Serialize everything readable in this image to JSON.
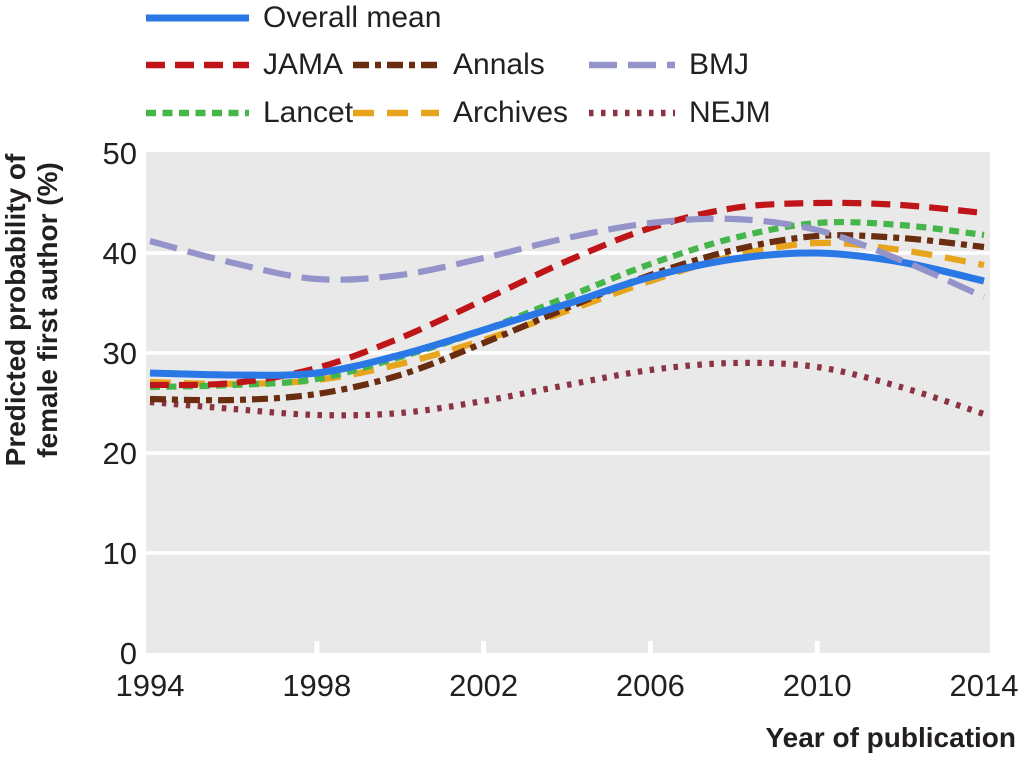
{
  "figure": {
    "plot_background": "#e9e9e9",
    "grid_color": "#ffffff",
    "text_color": "#231f20",
    "xlabel": "Year of publication",
    "ylabel_line1": "Predicted probability of",
    "ylabel_line2": "female first author (%)",
    "x_ticks": [
      "1994",
      "1998",
      "2002",
      "2006",
      "2010",
      "2014"
    ],
    "y_ticks": [
      "0",
      "10",
      "20",
      "30",
      "40",
      "50"
    ]
  },
  "legend": {
    "rows": [
      [
        "Overall mean"
      ],
      [
        "JAMA",
        "Annals",
        "BMJ"
      ],
      [
        "Lancet",
        "Archives",
        "NEJM"
      ]
    ]
  },
  "chart_data": {
    "type": "line",
    "title": "",
    "xlabel": "Year of publication",
    "ylabel": "Predicted probability of female first author (%)",
    "xlim": [
      1994,
      2014
    ],
    "ylim": [
      0,
      50
    ],
    "xticks": [
      1994,
      1998,
      2002,
      2006,
      2010,
      2014
    ],
    "yticks": [
      0,
      10,
      20,
      30,
      40,
      50
    ],
    "grid": "horizontal white lines on gray panel at y=10,20,30,40",
    "legend_position": "top-left, three rows",
    "x": [
      1994,
      1996,
      1998,
      2000,
      2002,
      2004,
      2006,
      2008,
      2010,
      2012,
      2014
    ],
    "series": [
      {
        "name": "NEJM",
        "color": "#8c3342",
        "style": "dotted",
        "values": [
          25.1,
          24.4,
          23.8,
          24.0,
          25.2,
          26.8,
          28.3,
          29.0,
          28.6,
          26.6,
          23.9
        ]
      },
      {
        "name": "Archives",
        "color": "#e7a51e",
        "style": "long-dash",
        "values": [
          27.1,
          26.9,
          27.3,
          28.9,
          31.3,
          34.2,
          37.2,
          39.7,
          41.0,
          40.3,
          38.8
        ]
      },
      {
        "name": "Lancet",
        "color": "#45b649",
        "style": "dashed-small",
        "values": [
          26.6,
          26.8,
          27.4,
          29.6,
          32.3,
          35.6,
          38.9,
          41.5,
          43.0,
          42.8,
          41.8
        ]
      },
      {
        "name": "JAMA",
        "color": "#c01518",
        "style": "dashed",
        "values": [
          26.8,
          27.0,
          28.5,
          31.5,
          35.3,
          39.2,
          42.5,
          44.5,
          45.0,
          44.8,
          44.0
        ]
      },
      {
        "name": "Annals",
        "color": "#6b2d10",
        "style": "dash-dot",
        "values": [
          25.4,
          25.3,
          25.9,
          27.8,
          31.0,
          34.5,
          37.8,
          40.3,
          41.7,
          41.5,
          40.6
        ]
      },
      {
        "name": "Overall mean",
        "color": "#2a78e5",
        "style": "solid",
        "values": [
          28.0,
          27.8,
          28.0,
          29.8,
          32.3,
          34.9,
          37.6,
          39.4,
          40.0,
          39.1,
          37.2
        ]
      },
      {
        "name": "BMJ",
        "color": "#9494cb",
        "style": "long-dash-wide",
        "values": [
          41.2,
          39.0,
          37.4,
          37.8,
          39.5,
          41.5,
          43.0,
          43.4,
          42.3,
          39.3,
          35.6
        ]
      }
    ]
  }
}
